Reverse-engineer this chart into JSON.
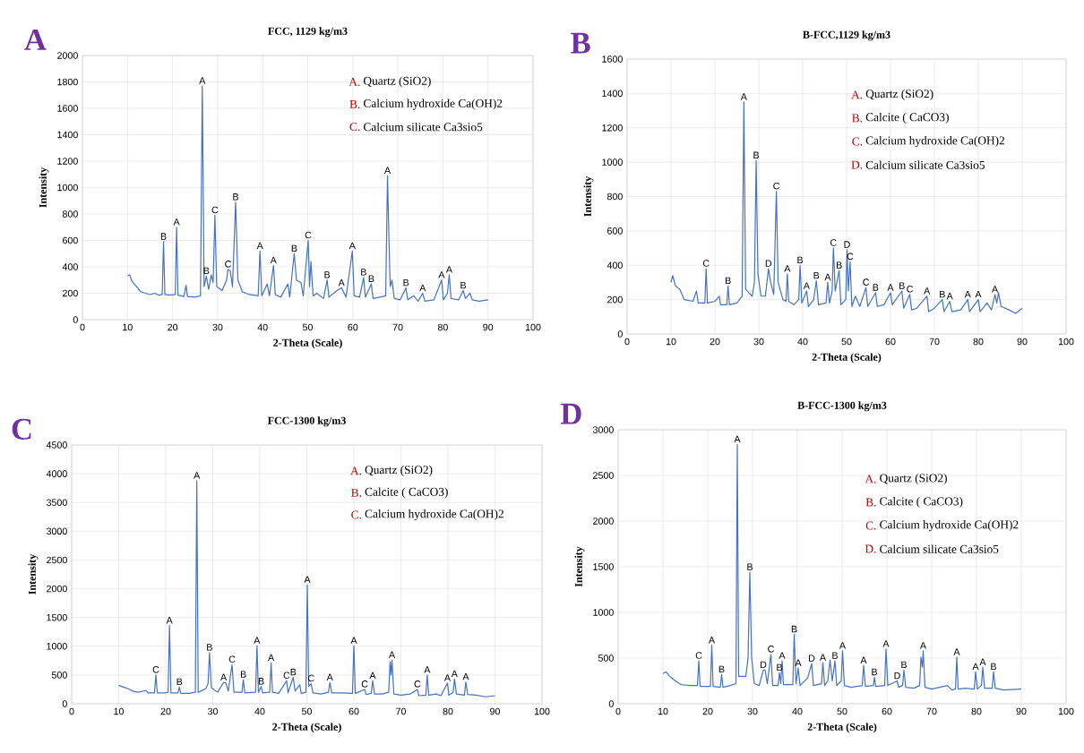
{
  "chart_data": [
    {
      "type": "line",
      "title": "FCC, 1129 kg/m3",
      "xlabel": "2-Theta (Scale)",
      "ylabel": "Intensity",
      "color": "#4472c4",
      "grid": true,
      "xlim": [
        0,
        100
      ],
      "xticks": [
        0,
        10,
        20,
        30,
        40,
        50,
        60,
        70,
        80,
        90,
        100
      ],
      "ylim": [
        0,
        2000
      ],
      "yticks": [
        0,
        200,
        400,
        600,
        800,
        1000,
        1200,
        1400,
        1600,
        1800,
        2000
      ],
      "x": [
        10,
        10.5,
        11,
        12,
        13,
        14,
        15,
        16,
        17,
        17.7,
        18.0,
        18.3,
        19.5,
        20.6,
        20.9,
        21.2,
        22.5,
        23.0,
        23.3,
        25,
        26.2,
        26.6,
        27.0,
        27.5,
        28.0,
        28.6,
        29.0,
        29.4,
        29.8,
        31,
        32.0,
        32.3,
        32.8,
        33.3,
        34.0,
        34.5,
        35.5,
        37,
        39.0,
        39.4,
        39.8,
        41.0,
        41.5,
        42.4,
        42.8,
        44,
        45.6,
        46.0,
        47.0,
        47.5,
        48.5,
        49,
        50.1,
        50.4,
        50.7,
        51.2,
        52,
        53.5,
        54.3,
        54.7,
        56.5,
        57.5,
        58.5,
        59.9,
        60.3,
        61.5,
        62.4,
        62.8,
        64.1,
        64.5,
        66,
        67.3,
        67.7,
        68.0,
        68.3,
        68.7,
        69.2,
        70.5,
        71.8,
        72.2,
        73.5,
        74.5,
        75.5,
        76,
        78,
        79.7,
        80.1,
        81.0,
        81.4,
        81.8,
        83.5,
        84.5,
        85,
        86,
        86.5,
        88,
        90
      ],
      "values": [
        330,
        340,
        290,
        250,
        210,
        200,
        190,
        200,
        185,
        190,
        590,
        190,
        185,
        190,
        700,
        185,
        175,
        260,
        175,
        170,
        180,
        1770,
        250,
        330,
        230,
        340,
        280,
        790,
        250,
        220,
        300,
        380,
        370,
        250,
        890,
        300,
        210,
        190,
        180,
        520,
        180,
        270,
        180,
        410,
        190,
        170,
        270,
        170,
        500,
        300,
        280,
        180,
        600,
        250,
        440,
        180,
        200,
        160,
        300,
        170,
        220,
        240,
        170,
        520,
        180,
        170,
        320,
        170,
        270,
        160,
        170,
        180,
        1090,
        640,
        250,
        300,
        160,
        150,
        240,
        150,
        180,
        140,
        200,
        140,
        150,
        300,
        150,
        200,
        340,
        160,
        150,
        220,
        160,
        200,
        150,
        140,
        150
      ],
      "annotations": [
        "A",
        "A.",
        "Quartz (SiO2)",
        "B.",
        "Calcium hydroxide Ca(OH)2",
        "C.",
        "Calcium silicate Ca3sio5",
        {
          "text": "B",
          "x": 18.0,
          "y": 590
        },
        {
          "text": "A",
          "x": 20.9,
          "y": 700
        },
        {
          "text": "A",
          "x": 26.6,
          "y": 1770
        },
        {
          "text": "B",
          "x": 27.5,
          "y": 330
        },
        {
          "text": "C",
          "x": 29.4,
          "y": 790
        },
        {
          "text": "C",
          "x": 32.3,
          "y": 380
        },
        {
          "text": "B",
          "x": 34.0,
          "y": 890
        },
        {
          "text": "A",
          "x": 39.4,
          "y": 520
        },
        {
          "text": "A",
          "x": 42.4,
          "y": 410
        },
        {
          "text": "B",
          "x": 47.0,
          "y": 500
        },
        {
          "text": "C",
          "x": 50.1,
          "y": 600
        },
        {
          "text": "B",
          "x": 54.3,
          "y": 300
        },
        {
          "text": "A",
          "x": 57.5,
          "y": 240
        },
        {
          "text": "A",
          "x": 59.9,
          "y": 520
        },
        {
          "text": "B",
          "x": 62.4,
          "y": 320
        },
        {
          "text": "B",
          "x": 64.1,
          "y": 270
        },
        {
          "text": "A",
          "x": 67.7,
          "y": 1090
        },
        {
          "text": "B",
          "x": 71.8,
          "y": 240
        },
        {
          "text": "A",
          "x": 75.5,
          "y": 200
        },
        {
          "text": "A",
          "x": 79.7,
          "y": 300
        },
        {
          "text": "A",
          "x": 81.4,
          "y": 340
        },
        {
          "text": "B",
          "x": 84.5,
          "y": 220
        }
      ]
    },
    {
      "type": "line",
      "title": "B-FCC,1129 kg/m3",
      "xlabel": "2-Theta (Scale)",
      "ylabel": "Intensity",
      "color": "#4472c4",
      "grid": true,
      "xlim": [
        0,
        100
      ],
      "xticks": [
        0,
        10,
        20,
        30,
        40,
        50,
        60,
        70,
        80,
        90,
        100
      ],
      "ylim": [
        0,
        1600
      ],
      "yticks": [
        0,
        200,
        400,
        600,
        800,
        1000,
        1200,
        1400,
        1600
      ],
      "x": [
        10,
        10.4,
        11,
        12,
        13,
        15,
        15.8,
        16.2,
        17.7,
        18.0,
        18.3,
        20,
        21,
        21.3,
        22.7,
        23.0,
        23.3,
        25,
        26.2,
        26.6,
        27.0,
        28.5,
        29.0,
        29.4,
        29.8,
        30.5,
        31.5,
        32.2,
        32.7,
        33.4,
        34.0,
        34.4,
        35.5,
        36.2,
        36.5,
        36.8,
        38,
        39.1,
        39.4,
        39.8,
        40.9,
        41.3,
        42.5,
        43.1,
        43.6,
        45.3,
        45.7,
        46.1,
        46.7,
        47.0,
        47.4,
        48.3,
        48.7,
        49.8,
        50.1,
        50.4,
        50.8,
        51.2,
        52,
        53,
        54.4,
        54.8,
        56.6,
        57,
        58.5,
        60.0,
        60.4,
        62.6,
        63,
        64.4,
        64.8,
        66,
        68.3,
        68.7,
        70,
        71.8,
        72.2,
        73.5,
        74,
        76,
        77.6,
        78,
        80,
        80.4,
        82,
        83.0,
        83.8,
        84.2,
        84.6,
        85.2,
        87,
        88.5,
        90
      ],
      "values": [
        300,
        340,
        280,
        260,
        200,
        190,
        250,
        180,
        180,
        380,
        180,
        190,
        220,
        170,
        170,
        280,
        170,
        180,
        220,
        1350,
        260,
        220,
        300,
        1010,
        350,
        220,
        220,
        380,
        300,
        230,
        830,
        300,
        200,
        190,
        350,
        190,
        170,
        200,
        400,
        180,
        250,
        160,
        200,
        310,
        170,
        180,
        300,
        180,
        250,
        500,
        250,
        370,
        170,
        200,
        490,
        250,
        420,
        160,
        220,
        160,
        270,
        160,
        240,
        160,
        170,
        240,
        170,
        250,
        150,
        230,
        140,
        150,
        220,
        130,
        150,
        200,
        130,
        190,
        130,
        140,
        200,
        130,
        200,
        130,
        180,
        140,
        230,
        180,
        240,
        160,
        140,
        120,
        150
      ],
      "annotations": [
        "B",
        "A.",
        "Quartz (SiO2)",
        "B.",
        "Calcite ( CaCO3)",
        "C.",
        "Calcium hydroxide Ca(OH)2",
        "D.",
        "Calcium silicate Ca3sio5",
        {
          "text": "C",
          "x": 18.0,
          "y": 380
        },
        {
          "text": "B",
          "x": 23.0,
          "y": 280
        },
        {
          "text": "A",
          "x": 26.6,
          "y": 1350
        },
        {
          "text": "B",
          "x": 29.4,
          "y": 1010
        },
        {
          "text": "D",
          "x": 32.2,
          "y": 380
        },
        {
          "text": "C",
          "x": 34.0,
          "y": 830
        },
        {
          "text": "A",
          "x": 36.5,
          "y": 350
        },
        {
          "text": "B",
          "x": 39.4,
          "y": 400
        },
        {
          "text": "A",
          "x": 40.9,
          "y": 250
        },
        {
          "text": "B",
          "x": 43.1,
          "y": 310
        },
        {
          "text": "A",
          "x": 45.7,
          "y": 300
        },
        {
          "text": "C",
          "x": 47.0,
          "y": 500
        },
        {
          "text": "B",
          "x": 48.3,
          "y": 370
        },
        {
          "text": "D",
          "x": 50.1,
          "y": 490
        },
        {
          "text": "C",
          "x": 50.8,
          "y": 420
        },
        {
          "text": "C",
          "x": 54.4,
          "y": 270
        },
        {
          "text": "B",
          "x": 56.6,
          "y": 240
        },
        {
          "text": "A",
          "x": 60.0,
          "y": 240
        },
        {
          "text": "B",
          "x": 62.6,
          "y": 250
        },
        {
          "text": "C",
          "x": 64.4,
          "y": 230
        },
        {
          "text": "A",
          "x": 68.3,
          "y": 220
        },
        {
          "text": "B",
          "x": 71.8,
          "y": 200
        },
        {
          "text": "A",
          "x": 73.5,
          "y": 190
        },
        {
          "text": "A",
          "x": 77.6,
          "y": 200
        },
        {
          "text": "A",
          "x": 80,
          "y": 200
        },
        {
          "text": "A",
          "x": 83.8,
          "y": 230
        }
      ]
    },
    {
      "type": "line",
      "title": "FCC-1300 kg/m3",
      "xlabel": "2-Theta (Scale)",
      "ylabel": "Intensity",
      "color": "#4472c4",
      "grid": true,
      "xlim": [
        0,
        100
      ],
      "xticks": [
        0,
        10,
        20,
        30,
        40,
        50,
        60,
        70,
        80,
        90,
        100
      ],
      "ylim": [
        0,
        4500
      ],
      "yticks": [
        0,
        500,
        1000,
        1500,
        2000,
        2500,
        3000,
        3500,
        4000,
        4500
      ],
      "x": [
        10,
        11,
        12,
        13,
        14,
        15.8,
        16.2,
        17.6,
        17.9,
        18.2,
        20,
        20.5,
        20.8,
        21.1,
        22.6,
        22.9,
        23.2,
        25,
        26.3,
        26.6,
        26.9,
        28.5,
        29.0,
        29.3,
        29.7,
        31,
        32.3,
        32.8,
        33.3,
        34.1,
        34.5,
        36.2,
        36.5,
        36.8,
        39.1,
        39.4,
        39.7,
        40.3,
        40.6,
        42.1,
        42.4,
        42.7,
        44,
        45.7,
        46.0,
        47.1,
        47.5,
        48.5,
        48.8,
        49.8,
        50.1,
        50.4,
        50.9,
        51.3,
        53,
        54.6,
        54.9,
        55.3,
        57.5,
        59.7,
        60.0,
        60.3,
        62.3,
        62.6,
        63.7,
        64.0,
        64.4,
        66,
        67.4,
        67.7,
        67.9,
        68.1,
        68.5,
        70,
        72,
        73.5,
        73.8,
        75.3,
        75.6,
        75.9,
        77.5,
        78.5,
        79.9,
        80.2,
        81.1,
        81.4,
        81.8,
        83.5,
        83.8,
        84.2,
        86,
        88,
        90
      ],
      "values": [
        320,
        290,
        260,
        220,
        200,
        230,
        190,
        190,
        500,
        190,
        190,
        200,
        1360,
        190,
        190,
        290,
        180,
        180,
        200,
        3880,
        200,
        260,
        350,
        890,
        280,
        200,
        370,
        360,
        220,
        680,
        200,
        200,
        420,
        190,
        200,
        1010,
        200,
        300,
        190,
        200,
        710,
        200,
        180,
        400,
        190,
        460,
        220,
        330,
        180,
        200,
        2070,
        300,
        350,
        190,
        170,
        200,
        370,
        190,
        190,
        180,
        1010,
        180,
        250,
        160,
        180,
        400,
        170,
        170,
        200,
        730,
        500,
        760,
        170,
        150,
        170,
        250,
        140,
        150,
        500,
        150,
        170,
        140,
        360,
        150,
        200,
        430,
        170,
        150,
        380,
        160,
        150,
        120,
        140
      ],
      "annotations": [
        "C",
        "A.",
        "Quartz (SiO2)",
        "B.",
        "Calcite ( CaCO3)",
        "C.",
        "Calcium hydroxide Ca(OH)2",
        {
          "text": "C",
          "x": 17.9,
          "y": 500
        },
        {
          "text": "A",
          "x": 20.8,
          "y": 1360
        },
        {
          "text": "B",
          "x": 22.9,
          "y": 290
        },
        {
          "text": "A",
          "x": 26.6,
          "y": 3880
        },
        {
          "text": "B",
          "x": 29.3,
          "y": 890
        },
        {
          "text": "A",
          "x": 32.3,
          "y": 370
        },
        {
          "text": "C",
          "x": 34.1,
          "y": 680
        },
        {
          "text": "B",
          "x": 36.5,
          "y": 420
        },
        {
          "text": "A",
          "x": 39.4,
          "y": 1010
        },
        {
          "text": "B",
          "x": 40.3,
          "y": 300
        },
        {
          "text": "A",
          "x": 42.4,
          "y": 710
        },
        {
          "text": "C",
          "x": 45.7,
          "y": 400
        },
        {
          "text": "B",
          "x": 47.1,
          "y": 460
        },
        {
          "text": "A",
          "x": 50.1,
          "y": 2070
        },
        {
          "text": "C",
          "x": 50.9,
          "y": 350
        },
        {
          "text": "A",
          "x": 54.9,
          "y": 370
        },
        {
          "text": "A",
          "x": 60.0,
          "y": 1010
        },
        {
          "text": "C",
          "x": 62.3,
          "y": 250
        },
        {
          "text": "A",
          "x": 64.0,
          "y": 400
        },
        {
          "text": "A",
          "x": 68.1,
          "y": 760
        },
        {
          "text": "C",
          "x": 73.5,
          "y": 250
        },
        {
          "text": "A",
          "x": 75.6,
          "y": 500
        },
        {
          "text": "A",
          "x": 79.9,
          "y": 360
        },
        {
          "text": "A",
          "x": 81.4,
          "y": 430
        },
        {
          "text": "A",
          "x": 83.8,
          "y": 380
        }
      ]
    },
    {
      "type": "line",
      "title": "B-FCC-1300 kg/m3",
      "xlabel": "2-Theta (Scale)",
      "ylabel": "Intensity",
      "color": "#4472c4",
      "grid": true,
      "xlim": [
        0,
        100
      ],
      "xticks": [
        0,
        10,
        20,
        30,
        40,
        50,
        60,
        70,
        80,
        90,
        100
      ],
      "ylim": [
        0,
        3000
      ],
      "yticks": [
        0,
        500,
        1000,
        1500,
        2000,
        2500,
        3000
      ],
      "x": [
        10,
        10.7,
        11.5,
        12.5,
        14,
        16,
        17.7,
        18.0,
        18.3,
        20.6,
        20.9,
        21.2,
        22.8,
        23.1,
        23.4,
        25,
        26.3,
        26.6,
        26.9,
        28.5,
        29.0,
        29.4,
        29.8,
        30.4,
        31.5,
        32.4,
        32.8,
        33.3,
        34.1,
        34.5,
        35.7,
        36.0,
        36.3,
        36.6,
        36.9,
        39.0,
        39.3,
        39.7,
        40.2,
        40.6,
        42.3,
        43.2,
        43.6,
        45.4,
        45.7,
        46.1,
        46.8,
        47.3,
        47.8,
        48.4,
        48.8,
        49.8,
        50.1,
        50.5,
        52,
        54.5,
        54.8,
        55.2,
        57.0,
        57.2,
        57.5,
        59.5,
        59.8,
        60.2,
        62.3,
        62.6,
        63.5,
        63.8,
        64.2,
        66,
        67.3,
        67.6,
        67.9,
        68.1,
        68.5,
        70,
        73.5,
        74.5,
        75.3,
        75.6,
        75.9,
        77.5,
        79.5,
        79.8,
        80.2,
        81.1,
        81.4,
        81.8,
        83.5,
        83.8,
        84.2,
        86,
        90
      ],
      "values": [
        330,
        350,
        300,
        260,
        210,
        200,
        200,
        470,
        190,
        190,
        640,
        190,
        180,
        320,
        180,
        200,
        220,
        2840,
        300,
        300,
        500,
        1440,
        500,
        220,
        200,
        370,
        370,
        220,
        540,
        200,
        200,
        340,
        220,
        470,
        210,
        210,
        760,
        220,
        390,
        200,
        280,
        440,
        200,
        220,
        450,
        200,
        250,
        480,
        250,
        470,
        200,
        250,
        580,
        200,
        180,
        200,
        420,
        190,
        200,
        290,
        190,
        200,
        600,
        200,
        250,
        180,
        200,
        370,
        180,
        170,
        200,
        510,
        400,
        580,
        180,
        160,
        200,
        150,
        160,
        510,
        160,
        170,
        160,
        350,
        160,
        200,
        400,
        170,
        170,
        350,
        170,
        150,
        160
      ],
      "annotations": [
        "D",
        "A.",
        "Quartz (SiO2)",
        "B.",
        "Calcite ( CaCO3)",
        "C.",
        "Calcium hydroxide Ca(OH)2",
        "D.",
        "Calcium silicate Ca3sio5",
        {
          "text": "C",
          "x": 18.0,
          "y": 470
        },
        {
          "text": "A",
          "x": 20.9,
          "y": 640
        },
        {
          "text": "B",
          "x": 23.1,
          "y": 320
        },
        {
          "text": "A",
          "x": 26.6,
          "y": 2840
        },
        {
          "text": "B",
          "x": 29.4,
          "y": 1440
        },
        {
          "text": "D",
          "x": 32.4,
          "y": 370
        },
        {
          "text": "C",
          "x": 34.1,
          "y": 540
        },
        {
          "text": "B",
          "x": 36.0,
          "y": 340
        },
        {
          "text": "A",
          "x": 36.6,
          "y": 470
        },
        {
          "text": "B",
          "x": 39.3,
          "y": 760
        },
        {
          "text": "A",
          "x": 40.2,
          "y": 390
        },
        {
          "text": "D",
          "x": 43.2,
          "y": 440
        },
        {
          "text": "A",
          "x": 45.7,
          "y": 450
        },
        {
          "text": "B",
          "x": 48.4,
          "y": 470
        },
        {
          "text": "A",
          "x": 50.1,
          "y": 580
        },
        {
          "text": "A",
          "x": 54.8,
          "y": 420
        },
        {
          "text": "B",
          "x": 57.2,
          "y": 290
        },
        {
          "text": "A",
          "x": 59.8,
          "y": 600
        },
        {
          "text": "D",
          "x": 62.3,
          "y": 250
        },
        {
          "text": "B",
          "x": 63.8,
          "y": 370
        },
        {
          "text": "A",
          "x": 68.1,
          "y": 580
        },
        {
          "text": "A",
          "x": 75.6,
          "y": 510
        },
        {
          "text": "A",
          "x": 79.8,
          "y": 350
        },
        {
          "text": "A",
          "x": 81.4,
          "y": 400
        },
        {
          "text": "B",
          "x": 83.8,
          "y": 350
        }
      ]
    }
  ]
}
